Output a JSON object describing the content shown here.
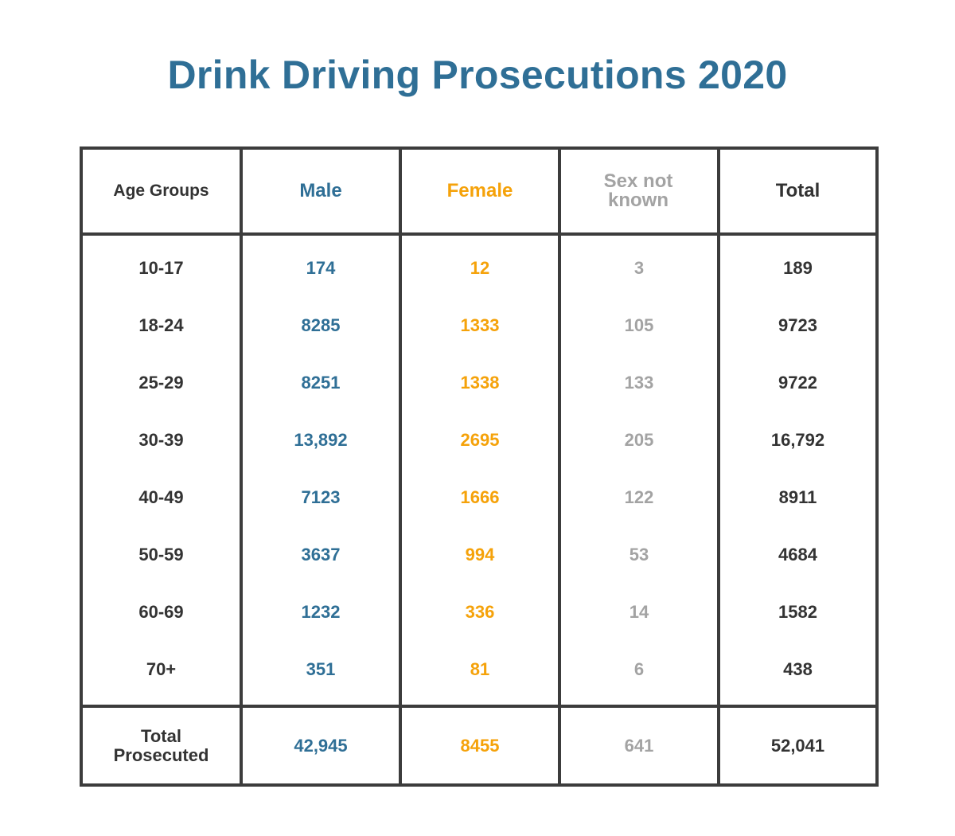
{
  "title": "Drink Driving Prosecutions 2020",
  "colors": {
    "title": "#2f6f96",
    "male": "#2f6f96",
    "female": "#f5a20a",
    "sex_not_known": "#a3a3a3",
    "total": "#333333",
    "border": "#3c3c3c"
  },
  "chart_data": {
    "type": "table",
    "title": "Drink Driving Prosecutions 2020",
    "columns": [
      "Age Groups",
      "Male",
      "Female",
      "Sex not known",
      "Total"
    ],
    "rows": [
      {
        "age": "10-17",
        "male": "174",
        "female": "12",
        "unknown": "3",
        "total": "189"
      },
      {
        "age": "18-24",
        "male": "8285",
        "female": "1333",
        "unknown": "105",
        "total": "9723"
      },
      {
        "age": "25-29",
        "male": "8251",
        "female": "1338",
        "unknown": "133",
        "total": "9722"
      },
      {
        "age": "30-39",
        "male": "13,892",
        "female": "2695",
        "unknown": "205",
        "total": "16,792"
      },
      {
        "age": "40-49",
        "male": "7123",
        "female": "1666",
        "unknown": "122",
        "total": "8911"
      },
      {
        "age": "50-59",
        "male": "3637",
        "female": "994",
        "unknown": "53",
        "total": "4684"
      },
      {
        "age": "60-69",
        "male": "1232",
        "female": "336",
        "unknown": "14",
        "total": "1582"
      },
      {
        "age": "70+",
        "male": "351",
        "female": "81",
        "unknown": "6",
        "total": "438"
      }
    ],
    "totals": {
      "label": "Total\nProsecuted",
      "male": "42,945",
      "female": "8455",
      "unknown": "641",
      "total": "52,041"
    }
  }
}
